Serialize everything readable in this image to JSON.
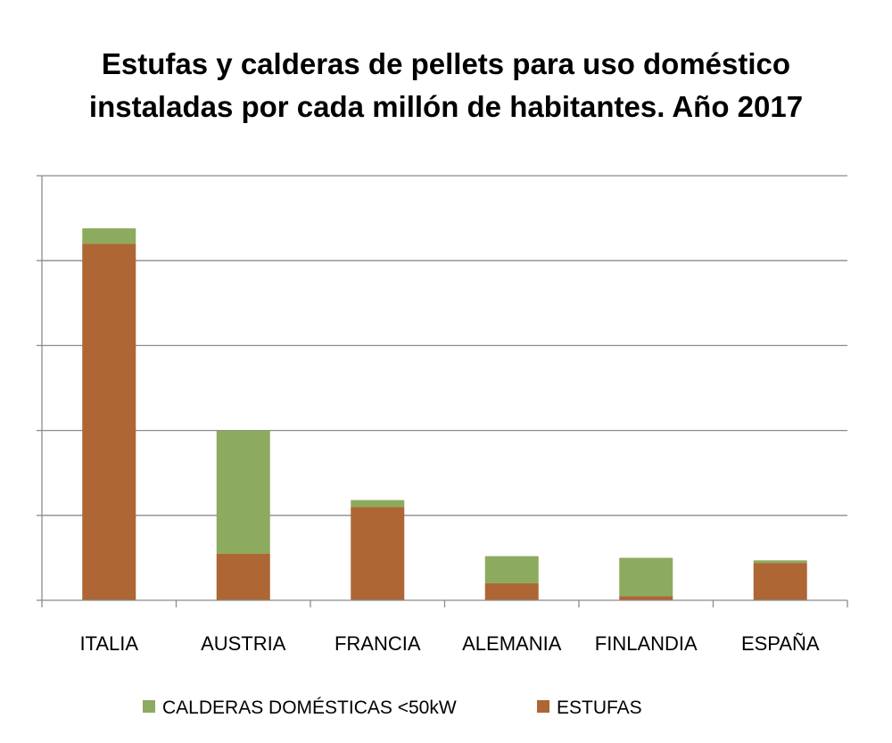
{
  "chart_data": {
    "type": "bar",
    "stacked": true,
    "title_lines": [
      "Estufas y calderas de pellets para uso doméstico",
      "instaladas  por cada millón de habitantes. Año 2017"
    ],
    "categories": [
      "ITALIA",
      "AUSTRIA",
      "FRANCIA",
      "ALEMANIA",
      "FINLANDIA",
      "ESPAÑA"
    ],
    "series": [
      {
        "name": "ESTUFAS",
        "color": "#AD6634",
        "values": [
          4.2,
          0.55,
          1.1,
          0.2,
          0.05,
          0.44
        ]
      },
      {
        "name": "CALDERAS DOMÉSTICAS <50kW",
        "color": "#8CAB5E",
        "values": [
          0.18,
          1.45,
          0.08,
          0.32,
          0.45,
          0.03
        ]
      }
    ],
    "ylim": [
      0,
      5
    ],
    "y_gridlines": 5,
    "y_tick_labels_visible": false,
    "xlabel": "",
    "ylabel": "",
    "grid": true,
    "legend_position": "bottom",
    "legend_order": [
      "CALDERAS DOMÉSTICAS <50kW",
      "ESTUFAS"
    ]
  }
}
